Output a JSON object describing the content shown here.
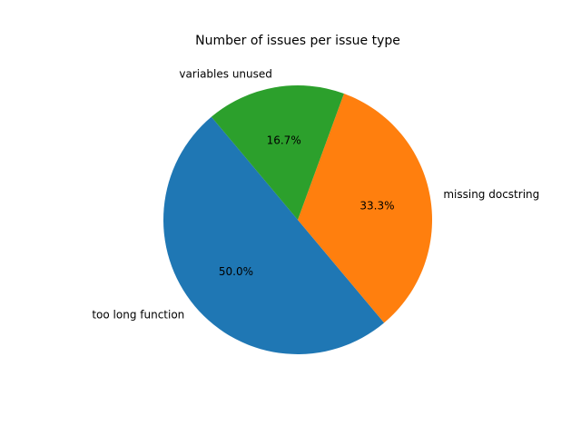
{
  "chart_data": {
    "type": "pie",
    "title": "Number of issues per issue type",
    "slices": [
      {
        "label": "too long function",
        "value": 50.0,
        "percent_label": "50.0%",
        "color": "#1f77b4"
      },
      {
        "label": "missing docstring",
        "value": 33.3,
        "percent_label": "33.3%",
        "color": "#ff7f0e"
      },
      {
        "label": "variables unused",
        "value": 16.7,
        "percent_label": "16.7%",
        "color": "#2ca02c"
      }
    ],
    "legend": "none"
  }
}
